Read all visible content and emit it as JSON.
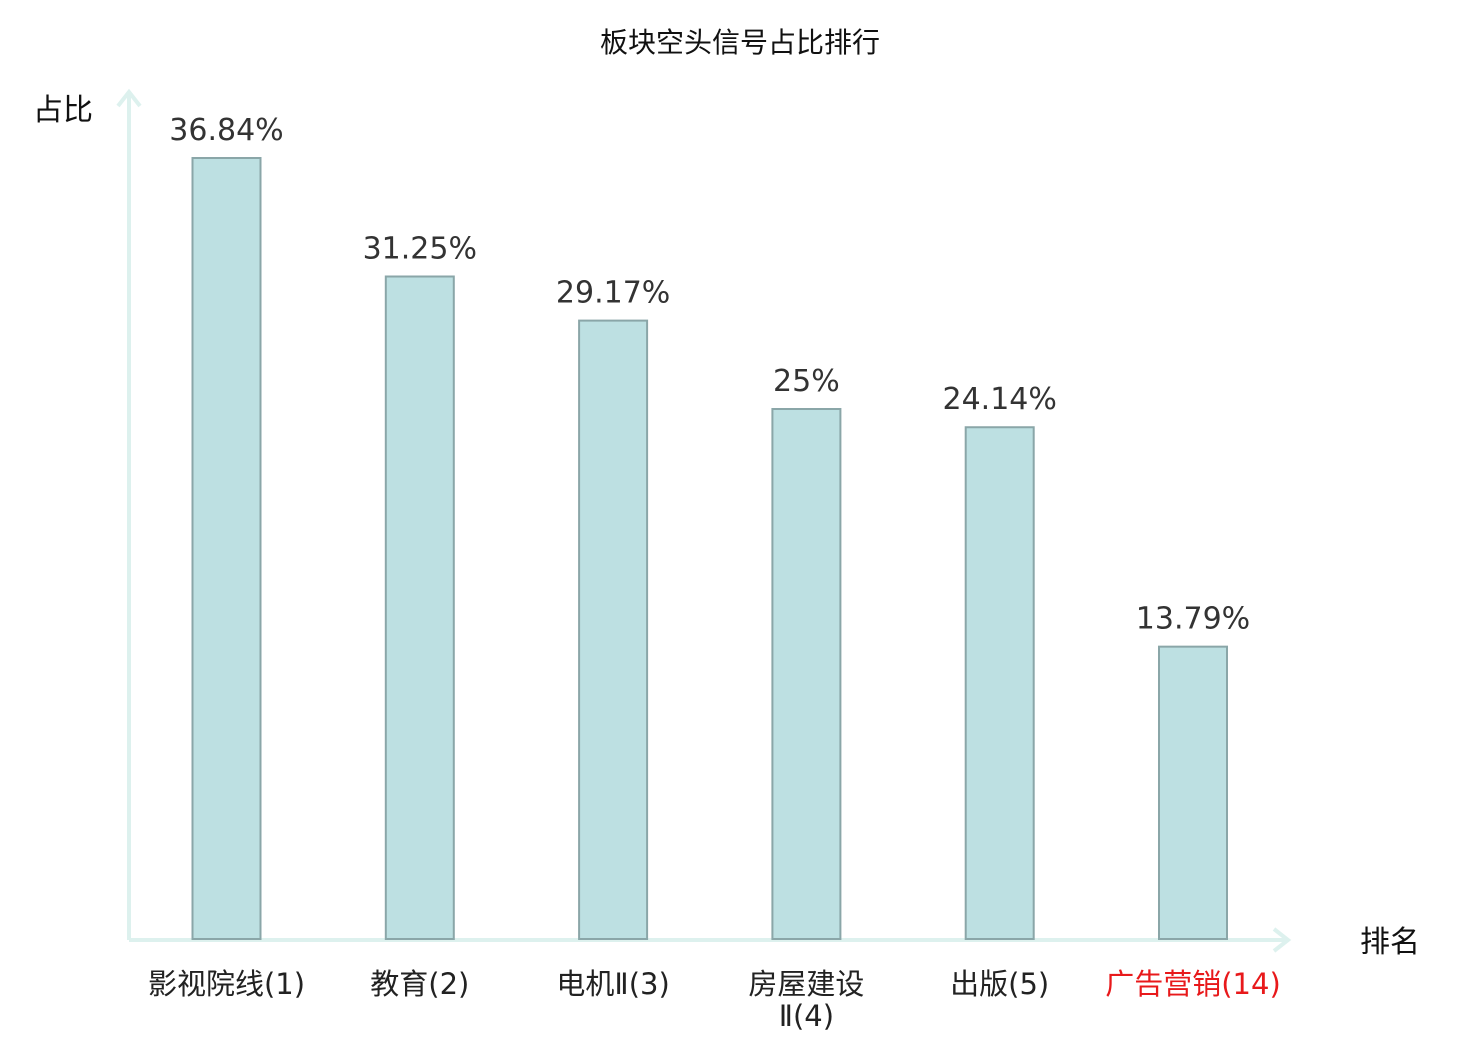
{
  "chart_data": {
    "type": "bar",
    "title": "板块空头信号占比排行",
    "ylabel": "占比",
    "xlabel": "排名",
    "ylim": [
      0,
      40
    ],
    "grid": false,
    "legend": "none",
    "categories": [
      {
        "name": "影视院线",
        "rank": "(1)",
        "highlight": false
      },
      {
        "name": "教育",
        "rank": "(2)",
        "highlight": false
      },
      {
        "name": "电机Ⅱ",
        "rank": "(3)",
        "highlight": false
      },
      {
        "name": "房屋建设",
        "name_line2": "Ⅱ",
        "rank": "(4)",
        "highlight": false
      },
      {
        "name": "出版",
        "rank": "(5)",
        "highlight": false
      },
      {
        "name": "广告营销",
        "rank": "(14)",
        "highlight": true
      }
    ],
    "values": [
      36.84,
      31.25,
      29.17,
      25,
      24.14,
      13.79
    ],
    "value_labels": [
      "36.84%",
      "31.25%",
      "29.17%",
      "25%",
      "24.14%",
      "13.79%"
    ],
    "colors": {
      "bar_fill": "#bde0e2",
      "bar_stroke": "#8aa6a8",
      "axis": "#ddf1ee",
      "highlight_text": "#e8191b"
    }
  }
}
